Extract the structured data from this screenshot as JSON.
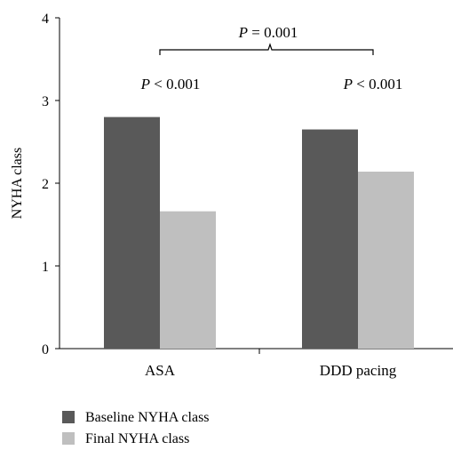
{
  "chart_data": {
    "type": "bar",
    "ylabel": "NYHA class",
    "ylim": [
      0,
      4
    ],
    "yticks": [
      "0",
      "1",
      "2",
      "3",
      "4"
    ],
    "categories": [
      "ASA",
      "DDD pacing"
    ],
    "series": [
      {
        "name": "Baseline NYHA class",
        "values": [
          2.8,
          2.65
        ],
        "color": "#595959"
      },
      {
        "name": "Final NYHA class",
        "values": [
          1.66,
          2.14
        ],
        "color": "#bfbfbf"
      }
    ],
    "annotations": {
      "between_groups": {
        "label": "P",
        "text": " = 0.001"
      },
      "asa": {
        "label": "P",
        "text": " < 0.001"
      },
      "ddd": {
        "label": "P",
        "text": " < 0.001"
      }
    },
    "legend_position": "bottom-left",
    "grid": false
  }
}
